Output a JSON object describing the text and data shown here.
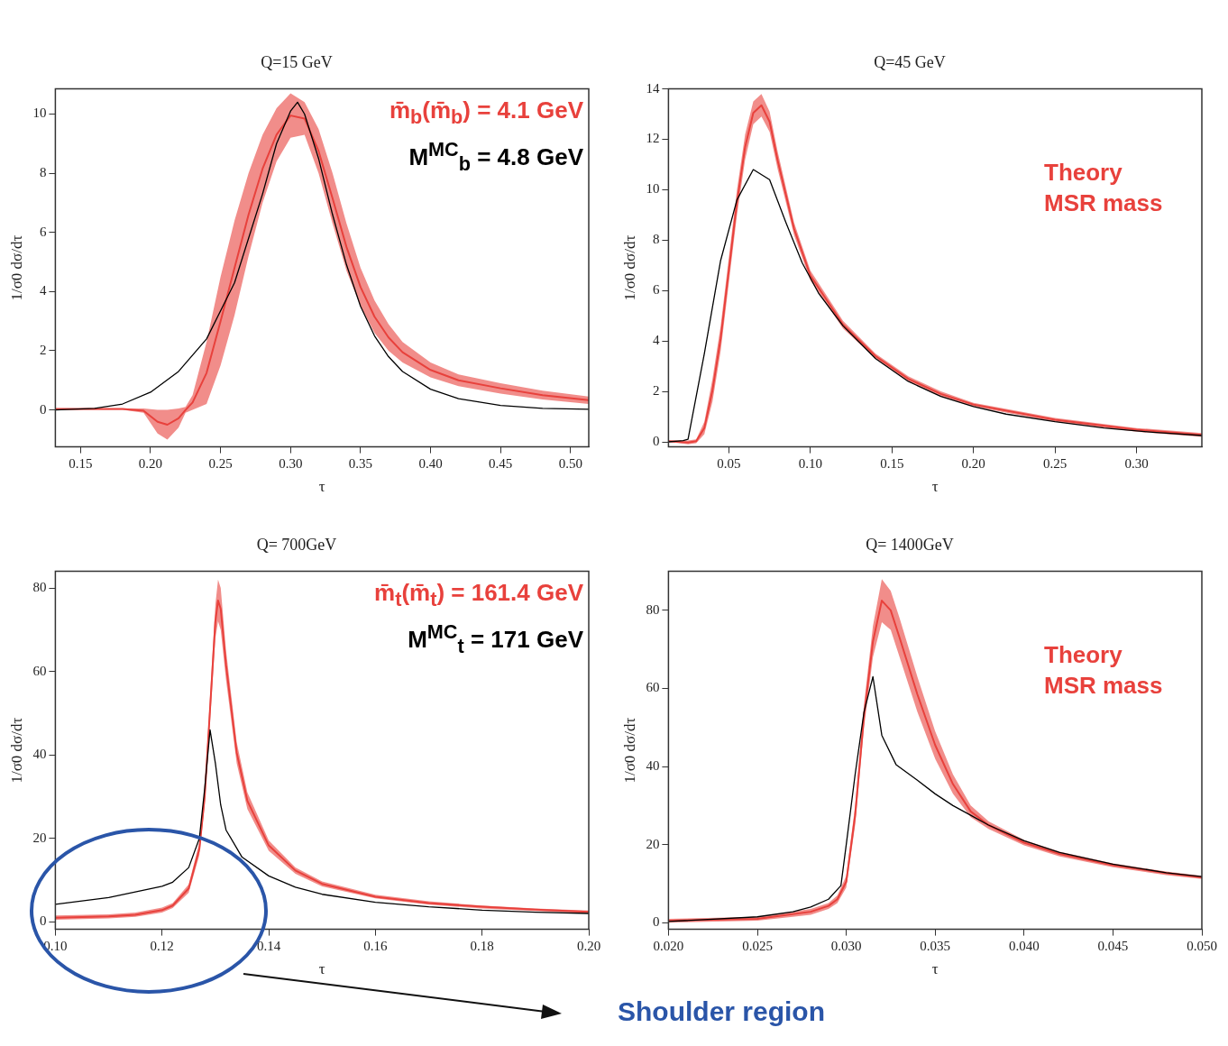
{
  "chart_data": [
    {
      "type": "line",
      "title": "Q=15 GeV",
      "xlabel": "τ",
      "ylabel": "1/σ0 dσ/dτ",
      "xlim": [
        0.132,
        0.513
      ],
      "ylim": [
        -1.25,
        10.85
      ],
      "xticks": [
        0.15,
        {
          "value": 0.2,
          "label": "0.20"
        },
        0.25,
        {
          "value": 0.3,
          "label": "0.30"
        },
        0.35,
        {
          "value": 0.4,
          "label": "0.40"
        },
        0.45,
        {
          "value": 0.5,
          "label": "0.50"
        }
      ],
      "yticks": [
        0,
        2,
        4,
        6,
        8,
        10
      ],
      "grid": false,
      "legend": false,
      "marker": "none",
      "line_style": "solid",
      "annotations": [
        "m̄$_{b}$(m̄$_{b}$) = 4.1 GeV",
        "M$^{MC}$$_{b}$ = 4.8 GeV"
      ],
      "series": [
        {
          "color": "#000000",
          "x": [
            0.132,
            0.16,
            0.18,
            0.2,
            0.22,
            0.24,
            0.26,
            0.28,
            0.29,
            0.3,
            0.305,
            0.31,
            0.32,
            0.33,
            0.34,
            0.35,
            0.36,
            0.37,
            0.38,
            0.4,
            0.42,
            0.45,
            0.48,
            0.513
          ],
          "values": [
            0,
            0.05,
            0.2,
            0.6,
            1.3,
            2.4,
            4.3,
            7.3,
            9.0,
            10.1,
            10.4,
            10.0,
            8.5,
            6.6,
            4.9,
            3.5,
            2.5,
            1.8,
            1.3,
            0.7,
            0.38,
            0.15,
            0.05,
            0.02
          ]
        },
        {
          "color": "#e8413c",
          "x": [
            0.132,
            0.18,
            0.195,
            0.205,
            0.212,
            0.22,
            0.225,
            0.23,
            0.24,
            0.25,
            0.26,
            0.27,
            0.28,
            0.29,
            0.3,
            0.31,
            0.32,
            0.33,
            0.34,
            0.35,
            0.36,
            0.37,
            0.38,
            0.4,
            0.42,
            0.45,
            0.48,
            0.513
          ],
          "values": [
            0.03,
            0.03,
            -0.03,
            -0.4,
            -0.5,
            -0.28,
            0,
            0.25,
            1.25,
            3,
            4.8,
            6.6,
            8.15,
            9.3,
            9.95,
            9.85,
            8.75,
            7.15,
            5.5,
            4.15,
            3.15,
            2.45,
            1.95,
            1.35,
            1,
            0.73,
            0.5,
            0.33
          ],
          "lower": [
            0,
            0,
            -0.1,
            -0.8,
            -1.0,
            -0.6,
            -0.1,
            0,
            0.2,
            1.5,
            3.2,
            5.2,
            7.0,
            8.4,
            9.2,
            9.3,
            8.0,
            6.3,
            4.7,
            3.5,
            2.6,
            2.0,
            1.6,
            1.1,
            0.8,
            0.55,
            0.35,
            0.2
          ],
          "upper": [
            0.05,
            0.05,
            0.05,
            0,
            0,
            0.05,
            0.1,
            0.5,
            2.3,
            4.5,
            6.4,
            8.0,
            9.3,
            10.2,
            10.7,
            10.4,
            9.5,
            8.0,
            6.3,
            4.8,
            3.7,
            2.9,
            2.3,
            1.6,
            1.2,
            0.9,
            0.65,
            0.45
          ]
        }
      ]
    },
    {
      "type": "line",
      "title": "Q=45 GeV",
      "xlabel": "τ",
      "ylabel": "1/σ0 dσ/dτ",
      "xlim": [
        0.013,
        0.34
      ],
      "ylim": [
        -0.2,
        14
      ],
      "xticks": [
        0.05,
        {
          "value": 0.1,
          "label": "0.10"
        },
        0.15,
        {
          "value": 0.2,
          "label": "0.20"
        },
        0.25,
        {
          "value": 0.3,
          "label": "0.30"
        }
      ],
      "yticks": [
        0,
        2,
        4,
        6,
        8,
        10,
        12,
        14
      ],
      "grid": false,
      "legend": "top right",
      "marker": "none",
      "line_style": "solid",
      "series": [
        {
          "color": "#000000",
          "x": [
            0.013,
            0.022,
            0.025,
            0.035,
            0.045,
            0.055,
            0.065,
            0.075,
            0.085,
            0.095,
            0.105,
            0.12,
            0.14,
            0.16,
            0.18,
            0.2,
            0.22,
            0.25,
            0.28,
            0.31,
            0.34
          ],
          "values": [
            0,
            0.05,
            0.1,
            3.5,
            7.2,
            9.6,
            10.8,
            10.4,
            8.7,
            7.1,
            5.9,
            4.6,
            3.3,
            2.4,
            1.8,
            1.4,
            1.1,
            0.8,
            0.55,
            0.38,
            0.25
          ]
        },
        {
          "name": "Theory MSR mass",
          "color": "#e8413c",
          "x": [
            0.013,
            0.025,
            0.03,
            0.035,
            0.04,
            0.045,
            0.05,
            0.055,
            0.06,
            0.065,
            0.07,
            0.075,
            0.08,
            0.09,
            0.1,
            0.12,
            0.14,
            0.16,
            0.18,
            0.2,
            0.25,
            0.3,
            0.34
          ],
          "values": [
            0.03,
            -0.03,
            0.03,
            0.55,
            2.05,
            4.1,
            6.8,
            9.5,
            11.7,
            13.05,
            13.35,
            12.7,
            11.15,
            8.45,
            6.6,
            4.65,
            3.4,
            2.5,
            1.9,
            1.48,
            0.88,
            0.48,
            0.28
          ],
          "lower": [
            0,
            -0.1,
            -0.05,
            0.3,
            1.6,
            3.6,
            6.3,
            9.0,
            11.2,
            12.6,
            12.9,
            12.3,
            10.8,
            8.2,
            6.4,
            4.5,
            3.3,
            2.4,
            1.8,
            1.4,
            0.8,
            0.4,
            0.2
          ],
          "upper": [
            0.05,
            0.05,
            0.1,
            0.8,
            2.5,
            4.6,
            7.3,
            10.0,
            12.2,
            13.5,
            13.8,
            13.1,
            11.5,
            8.7,
            6.8,
            4.8,
            3.5,
            2.6,
            2.0,
            1.55,
            0.95,
            0.55,
            0.35
          ]
        }
      ]
    },
    {
      "type": "line",
      "title": "Q= 700GeV",
      "xlabel": "τ",
      "ylabel": "1/σ0 dσ/dτ",
      "xlim": [
        0.1,
        0.2
      ],
      "ylim": [
        -1.8,
        84
      ],
      "xticks": [
        {
          "value": 0.1,
          "label": "0.10"
        },
        0.12,
        0.14,
        0.16,
        0.18,
        {
          "value": 0.2,
          "label": "0.20"
        }
      ],
      "yticks": [
        0,
        20,
        40,
        60,
        80
      ],
      "grid": false,
      "legend": false,
      "marker": "none",
      "line_style": "solid",
      "annotations": [
        "m̄$_{t}$(m̄$_{t}$) = 161.4 GeV",
        "M$^{MC}$$_{t}$ = 171 GeV",
        "Shoulder region"
      ],
      "series": [
        {
          "color": "#000000",
          "x": [
            0.1,
            0.11,
            0.12,
            0.122,
            0.125,
            0.127,
            0.128,
            0.129,
            0.13,
            0.131,
            0.132,
            0.135,
            0.14,
            0.145,
            0.15,
            0.16,
            0.17,
            0.18,
            0.19,
            0.2
          ],
          "values": [
            4.2,
            5.8,
            8.5,
            9.5,
            13,
            20,
            32,
            46,
            38,
            28,
            22,
            15.5,
            11,
            8.3,
            6.6,
            4.7,
            3.6,
            2.8,
            2.3,
            2.0
          ]
        },
        {
          "color": "#e8413c",
          "x": [
            0.1,
            0.11,
            0.115,
            0.12,
            0.122,
            0.125,
            0.127,
            0.128,
            0.129,
            0.13,
            0.1305,
            0.131,
            0.132,
            0.134,
            0.136,
            0.14,
            0.145,
            0.15,
            0.16,
            0.17,
            0.18,
            0.19,
            0.2
          ],
          "values": [
            1,
            1.3,
            1.7,
            2.8,
            3.9,
            8,
            17.5,
            30,
            51,
            72,
            77,
            75,
            61.5,
            40.5,
            29,
            18.3,
            12.3,
            9.1,
            6,
            4.5,
            3.6,
            2.9,
            2.4
          ],
          "lower": [
            0.5,
            0.8,
            1.2,
            2.2,
            3.3,
            7,
            16,
            28,
            48,
            68,
            72,
            70,
            58,
            38,
            27,
            17,
            11.5,
            8.5,
            5.6,
            4.1,
            3.2,
            2.6,
            2.1
          ],
          "upper": [
            1.5,
            1.8,
            2.2,
            3.4,
            4.5,
            9,
            19,
            32,
            54,
            76,
            82,
            80,
            65,
            43,
            31,
            19.5,
            13,
            9.7,
            6.5,
            4.9,
            3.9,
            3.2,
            2.7
          ]
        }
      ]
    },
    {
      "type": "line",
      "title": "Q= 1400GeV",
      "xlabel": "τ",
      "ylabel": "1/σ0 dσ/dτ",
      "xlim": [
        0.02,
        0.05
      ],
      "ylim": [
        -1.7,
        90
      ],
      "xticks": [
        {
          "value": 0.02,
          "label": "0.020"
        },
        {
          "value": 0.025,
          "label": "0.025"
        },
        {
          "value": 0.03,
          "label": "0.030"
        },
        {
          "value": 0.035,
          "label": "0.035"
        },
        {
          "value": 0.04,
          "label": "0.040"
        },
        {
          "value": 0.045,
          "label": "0.045"
        },
        {
          "value": 0.05,
          "label": "0.050"
        }
      ],
      "yticks": [
        0,
        20,
        40,
        60,
        80
      ],
      "grid": false,
      "legend": "top right",
      "marker": "none",
      "line_style": "solid",
      "series": [
        {
          "color": "#000000",
          "x": [
            0.02,
            0.025,
            0.027,
            0.028,
            0.029,
            0.0297,
            0.03,
            0.0305,
            0.031,
            0.0315,
            0.032,
            0.0328,
            0.034,
            0.035,
            0.036,
            0.037,
            0.038,
            0.04,
            0.042,
            0.045,
            0.048,
            0.05
          ],
          "values": [
            0.3,
            1.5,
            2.8,
            4,
            6,
            9.5,
            20,
            38,
            54,
            63,
            48,
            40.5,
            36.5,
            33,
            30,
            27.5,
            25,
            21,
            18,
            15,
            12.8,
            11.8
          ]
        },
        {
          "name": "Theory MSR mass",
          "color": "#e8413c",
          "x": [
            0.02,
            0.025,
            0.028,
            0.029,
            0.0295,
            0.03,
            0.0305,
            0.031,
            0.0315,
            0.032,
            0.0325,
            0.033,
            0.034,
            0.035,
            0.036,
            0.037,
            0.038,
            0.04,
            0.042,
            0.045,
            0.048,
            0.05
          ],
          "values": [
            0.5,
            1,
            2.8,
            4.3,
            6,
            10.5,
            27.5,
            53,
            72,
            82.5,
            80,
            73,
            58.5,
            45.5,
            35.5,
            28.5,
            25,
            20.5,
            17.6,
            14.7,
            12.7,
            11.6
          ],
          "lower": [
            0,
            0.5,
            2,
            3.5,
            5,
            9,
            25,
            50,
            68,
            77,
            75,
            68,
            54,
            42,
            33,
            27,
            24,
            19.8,
            17,
            14.2,
            12.2,
            11.2
          ],
          "upper": [
            1,
            1.5,
            3.5,
            5,
            7,
            12,
            30,
            56,
            76,
            88,
            85,
            78,
            63,
            49,
            38,
            30,
            26,
            21.2,
            18.2,
            15.2,
            13.1,
            12
          ]
        }
      ]
    }
  ]
}
